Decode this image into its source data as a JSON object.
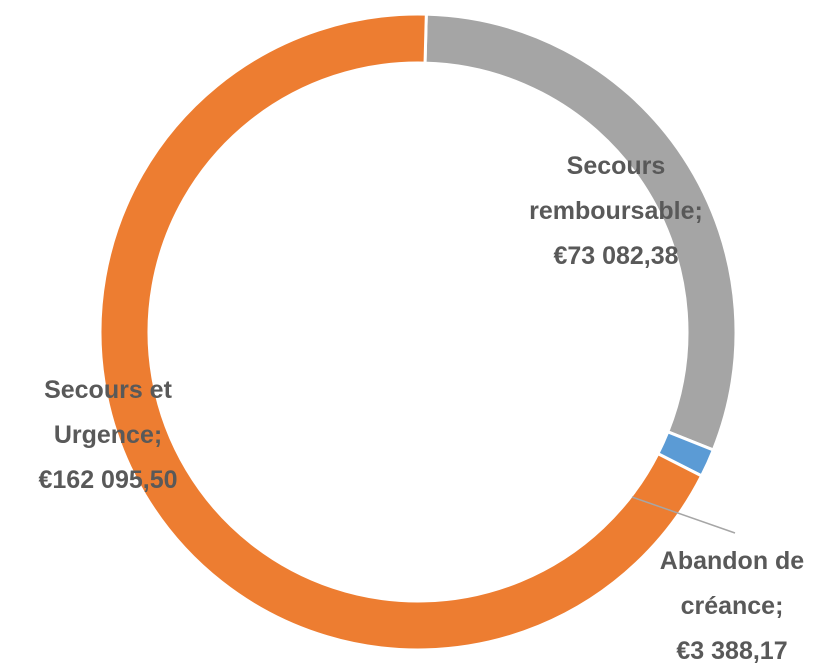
{
  "chart_data": {
    "type": "pie",
    "style": "doughnut",
    "start_angle_deg": 0,
    "direction": "clockwise",
    "slices": [
      {
        "name": "Secours remboursable",
        "value": 73082.38,
        "color": "#A5A5A5",
        "label_lines": [
          "Secours",
          "remboursable;",
          "€73 082,38"
        ]
      },
      {
        "name": "Abandon de créance",
        "value": 3388.17,
        "color": "#5B9BD5",
        "label_lines": [
          "Abandon de",
          "créance;",
          "€3 388,17"
        ]
      },
      {
        "name": "Secours et Urgence",
        "value": 162095.5,
        "color": "#ED7D31",
        "label_lines": [
          "Secours et",
          "Urgence;",
          "€162 095,50"
        ]
      }
    ],
    "legend": "none"
  }
}
